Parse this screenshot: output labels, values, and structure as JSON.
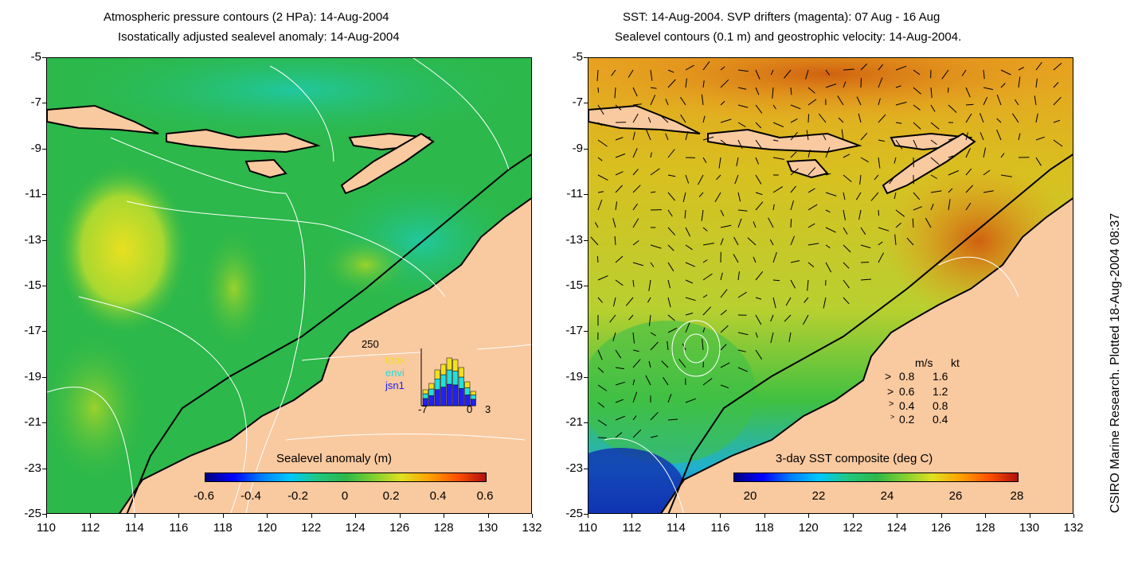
{
  "left_panel": {
    "title_line1": "Atmospheric pressure contours (2 HPa): 14-Aug-2004",
    "title_line2": "Isostatically adjusted sealevel anomaly: 14-Aug-2004",
    "colorbar_label": "Sealevel anomaly (m)",
    "colorbar_ticks": [
      "-0.6",
      "-0.4",
      "-0.2",
      "0",
      "0.2",
      "0.4",
      "0.6"
    ],
    "inset": {
      "ymax_label": "250",
      "x_ticks": [
        "-7",
        "0",
        "3"
      ],
      "legend": [
        {
          "name": "topx",
          "color": "#f0e020"
        },
        {
          "name": "envi",
          "color": "#20e0e0"
        },
        {
          "name": "jsn1",
          "color": "#2020ff"
        }
      ]
    }
  },
  "right_panel": {
    "title_line1": "SST: 14-Aug-2004. SVP drifters (magenta): 07 Aug - 16 Aug",
    "title_line2": "Sealevel contours (0.1 m) and geostrophic velocity: 14-Aug-2004.",
    "colorbar_label": "3-day SST composite (deg C)",
    "colorbar_ticks": [
      "20",
      "22",
      "24",
      "26",
      "28"
    ],
    "vector_legend": {
      "header_ms": "m/s",
      "header_kt": "kt",
      "rows": [
        {
          "ms": "0.8",
          "kt": "1.6"
        },
        {
          "ms": "0.6",
          "kt": "1.2"
        },
        {
          "ms": "0.4",
          "kt": "0.8"
        },
        {
          "ms": "0.2",
          "kt": "0.4"
        }
      ]
    }
  },
  "axes": {
    "y_ticks": [
      "-5",
      "-7",
      "-9",
      "-11",
      "-13",
      "-15",
      "-17",
      "-19",
      "-21",
      "-23",
      "-25"
    ],
    "x_ticks": [
      "110",
      "112",
      "114",
      "116",
      "118",
      "120",
      "122",
      "124",
      "126",
      "128",
      "130",
      "132"
    ]
  },
  "side_note": "CSIRO Marine Research. Plotted 18-Aug-2004 08:37",
  "colors": {
    "land": "#f9c9a0",
    "sla_background": "#2cb84a",
    "sst_background": "#d9c020"
  }
}
